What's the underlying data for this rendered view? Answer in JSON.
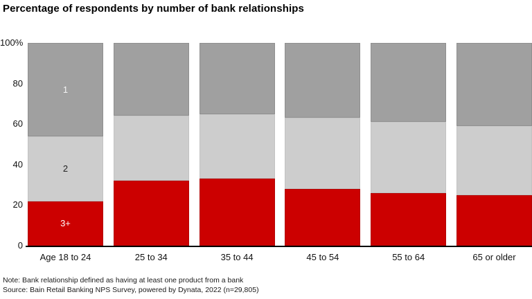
{
  "title": "Percentage of respondents by number of bank relationships",
  "notes": {
    "note": "Note: Bank relationship defined as having at least one product from a bank",
    "source": "Source: Bain Retail Banking NPS Survey, powered by Dynata, 2022 (n=29,805)"
  },
  "colors": {
    "segment_one": "#a0a0a0",
    "segment_two": "#cdcdcd",
    "segment_three_plus": "#cc0000",
    "axis": "#000000",
    "background": "#ffffff"
  },
  "chart_data": {
    "type": "bar",
    "stacked": true,
    "title": "Percentage of respondents by number of bank relationships",
    "categories": [
      "Age 18 to 24",
      "25 to 34",
      "35 to 44",
      "45 to 54",
      "55 to 64",
      "65 or older"
    ],
    "series": [
      {
        "name": "3+",
        "color": "#cc0000",
        "border": "#b40505",
        "label_color": "#ffffff",
        "values": [
          22,
          32,
          33,
          28,
          26,
          25
        ]
      },
      {
        "name": "2",
        "color": "#cdcdcd",
        "border": "#c2c2c2",
        "label_color": "#222222",
        "values": [
          32,
          32,
          32,
          35,
          35,
          34
        ]
      },
      {
        "name": "1",
        "color": "#a0a0a0",
        "border": "#8f8f8f",
        "label_color": "#f5f5f5",
        "values": [
          46,
          36,
          35,
          37,
          39,
          41
        ]
      }
    ],
    "segment_labels_shown_on_first_bar_only": true,
    "yticks": [
      {
        "value": 100,
        "label": "100%"
      },
      {
        "value": 80,
        "label": "80"
      },
      {
        "value": 60,
        "label": "60"
      },
      {
        "value": 40,
        "label": "40"
      },
      {
        "value": 20,
        "label": "20"
      },
      {
        "value": 0,
        "label": "0"
      }
    ],
    "ylim": [
      0,
      100
    ],
    "grid": false,
    "legend": "inline-segment-labels"
  }
}
